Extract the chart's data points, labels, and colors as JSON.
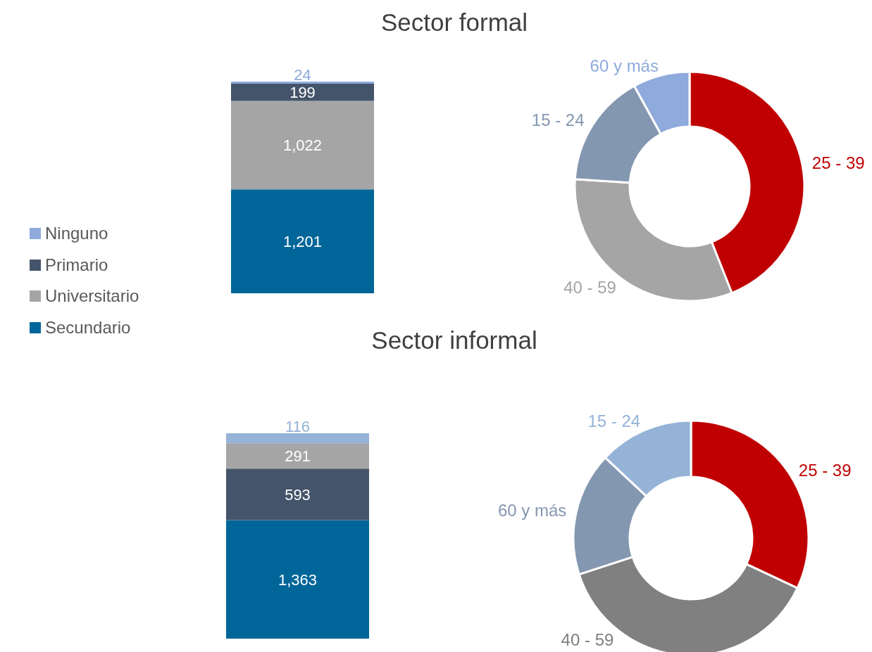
{
  "chart_data": [
    {
      "type": "bar",
      "title": "Sector formal",
      "stacked": true,
      "legend": "left",
      "tick_labels": false,
      "categories": [
        null
      ],
      "series": [
        {
          "name": "Secundario",
          "color": "#006699",
          "values": [
            1201
          ],
          "value_labels": [
            "1,201"
          ]
        },
        {
          "name": "Universitario",
          "color": "#a5a5a5",
          "values": [
            1022
          ],
          "value_labels": [
            "1,022"
          ]
        },
        {
          "name": "Primario",
          "color": "#44546a",
          "values": [
            199
          ],
          "value_labels": [
            "199"
          ]
        },
        {
          "name": "Ninguno",
          "color": "#8faadc",
          "values": [
            24
          ],
          "value_labels": [
            "24"
          ]
        }
      ]
    },
    {
      "type": "donut",
      "categories": [
        "25 - 39",
        "40 - 59",
        "15 - 24",
        "60 y más"
      ],
      "values": [
        44,
        32,
        16,
        8
      ],
      "colors": [
        "#c00000",
        "#a5a5a5",
        "#8497b0",
        "#8faadc"
      ]
    },
    {
      "type": "bar",
      "title": "Sector informal",
      "stacked": true,
      "tick_labels": false,
      "categories": [
        null
      ],
      "series": [
        {
          "color": "#006699",
          "values": [
            1363
          ],
          "value_labels": [
            "1,363"
          ]
        },
        {
          "color": "#44546a",
          "values": [
            593
          ],
          "value_labels": [
            "593"
          ]
        },
        {
          "color": "#a5a5a5",
          "values": [
            291
          ],
          "value_labels": [
            "291"
          ]
        },
        {
          "color": "#95b3d7",
          "values": [
            116
          ],
          "value_labels": [
            "116"
          ]
        }
      ]
    },
    {
      "type": "donut",
      "categories": [
        "25 - 39",
        "40 - 59",
        "60 y más",
        "15 - 24"
      ],
      "values": [
        32,
        38,
        17,
        13
      ],
      "colors": [
        "#c00000",
        "#808080",
        "#8497b0",
        "#95b3d7"
      ]
    }
  ]
}
